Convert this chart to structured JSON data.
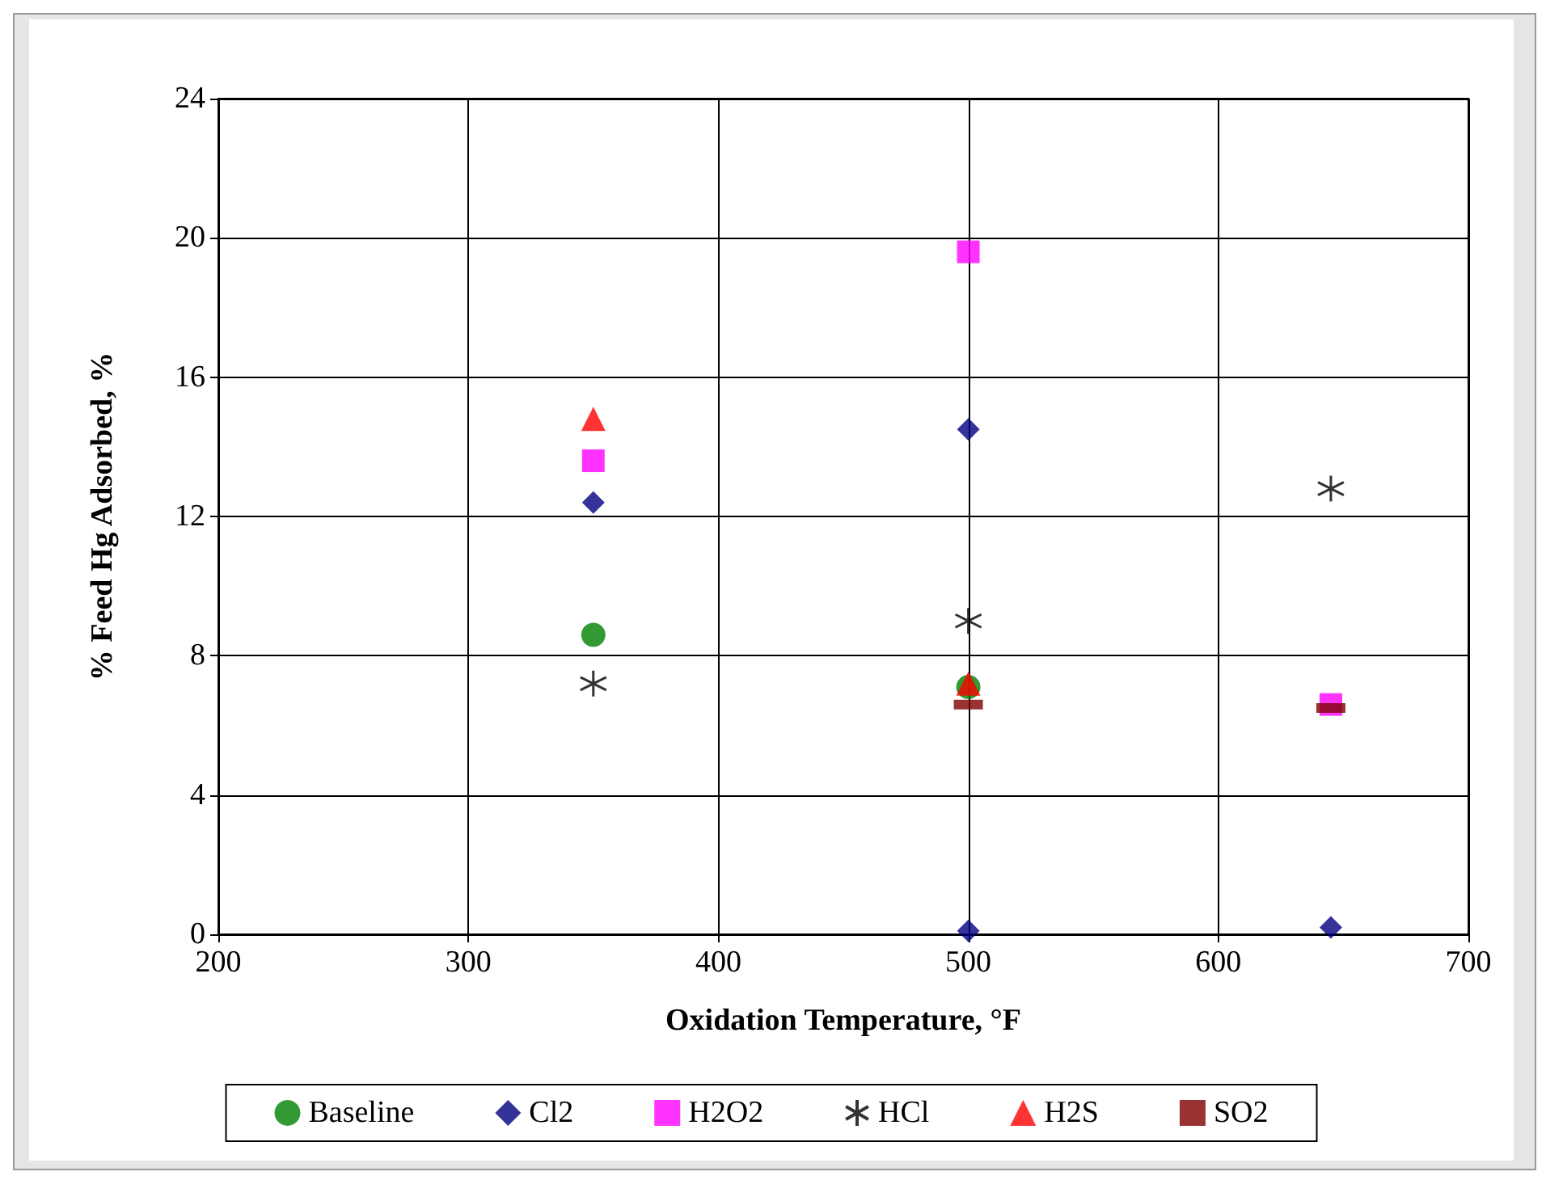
{
  "chart_data": {
    "type": "scatter",
    "xlabel": "Oxidation Temperature, °F",
    "ylabel": "% Feed Hg Adsorbed, %",
    "xlim": [
      200,
      700
    ],
    "xticks": [
      200,
      300,
      400,
      500,
      600,
      700
    ],
    "ylim": [
      0,
      24
    ],
    "yticks": [
      0,
      4,
      8,
      12,
      16,
      20,
      24
    ],
    "grid": true,
    "legend": "bottom",
    "series": [
      {
        "name": "Baseline",
        "color": "#008000",
        "marker": "circle",
        "x": [
          350,
          500
        ],
        "values": [
          8.6,
          7.1
        ]
      },
      {
        "name": "Cl2",
        "color": "#000080",
        "marker": "diamond",
        "x": [
          350,
          500,
          500,
          645
        ],
        "values": [
          12.4,
          14.5,
          0.1,
          0.2
        ]
      },
      {
        "name": "H2O2",
        "color": "#ff00ff",
        "marker": "square",
        "x": [
          350,
          500,
          645
        ],
        "values": [
          13.6,
          19.6,
          6.6
        ]
      },
      {
        "name": "HCl",
        "color": "#000000",
        "marker": "cross",
        "x": [
          350,
          500,
          645
        ],
        "values": [
          7.2,
          9.0,
          12.8
        ]
      },
      {
        "name": "H2S",
        "color": "#ff0000",
        "marker": "triangle",
        "x": [
          350,
          500
        ],
        "values": [
          14.8,
          7.2
        ]
      },
      {
        "name": "SO2",
        "color": "#800000",
        "marker": "square",
        "x": [
          500,
          645
        ],
        "values": [
          6.6,
          6.5
        ]
      }
    ]
  }
}
